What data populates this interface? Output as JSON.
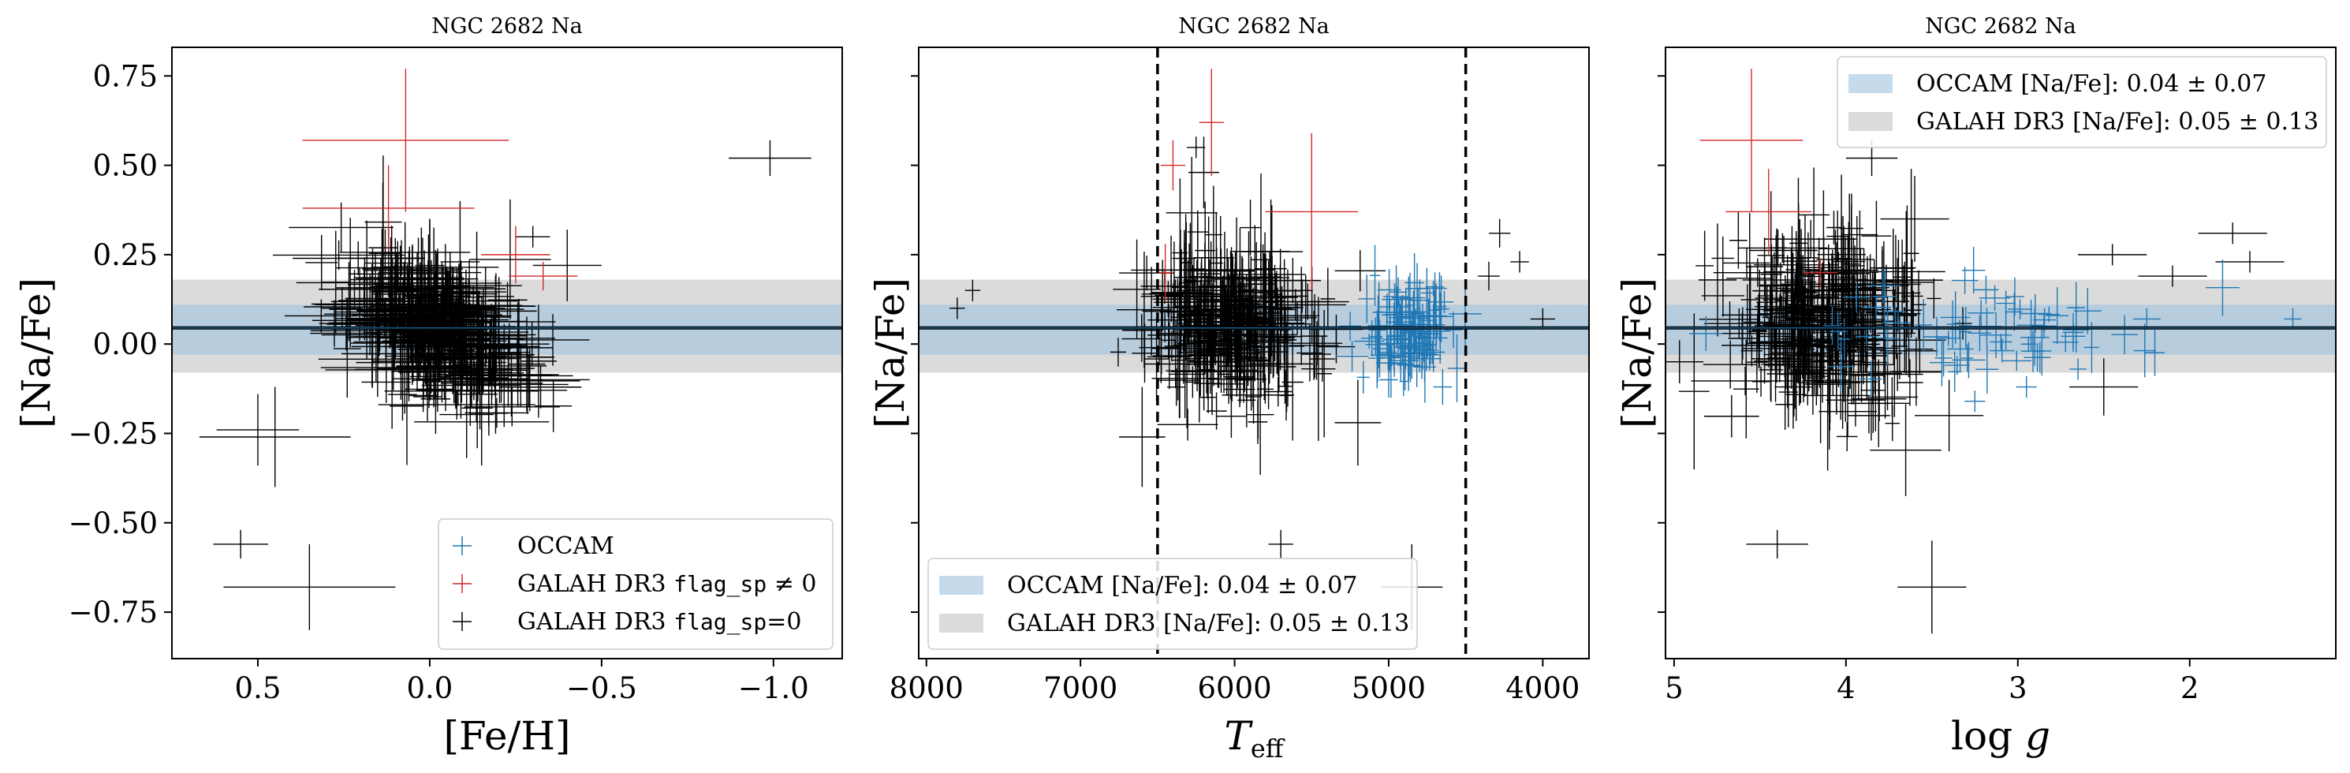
{
  "figure": {
    "colors": {
      "occam": "#1f77b4",
      "galah_flag": "#d62728",
      "galah": "#000000",
      "occam_band": "#9fc1de",
      "galah_band": "#cfcfcf"
    }
  },
  "chart_data": [
    {
      "type": "scatter",
      "title": "NGC 2682 Na",
      "xlabel": "[Fe/H]",
      "ylabel": "[Na/Fe]",
      "xlim": [
        0.75,
        -1.2
      ],
      "ylim": [
        -0.88,
        0.83
      ],
      "x_inverted": true,
      "xticks": [
        0.5,
        0.0,
        -0.5,
        -1.0
      ],
      "xtick_labels": [
        "0.5",
        "0.0",
        "−0.5",
        "−1.0"
      ],
      "yticks": [
        0.75,
        0.5,
        0.25,
        0.0,
        -0.25,
        -0.5,
        -0.75
      ],
      "ytick_labels": [
        "0.75",
        "0.50",
        "0.25",
        "0.00",
        "−0.25",
        "−0.50",
        "−0.75"
      ],
      "show_ytick_labels": true,
      "legend": {
        "placement": "lower-right",
        "entries": [
          {
            "series": "occam",
            "label": "OCCAM"
          },
          {
            "series": "galah_flag",
            "prefix": "GALAH DR3 ",
            "code": "flag_sp",
            "suffix": " ≠ 0"
          },
          {
            "series": "galah",
            "prefix": "GALAH DR3 ",
            "code": "flag_sp",
            "suffix": "=0"
          }
        ]
      },
      "bands": [
        {
          "name": "GALAH DR3",
          "center": 0.05,
          "halfwidth": 0.13
        },
        {
          "name": "OCCAM",
          "center": 0.04,
          "halfwidth": 0.07
        }
      ],
      "hline": 0.045,
      "vlines": [],
      "series": [
        {
          "name": "GALAH DR3 flag_sp ≠ 0",
          "color": "galah_flag",
          "points": [
            [
              0.07,
              0.57,
              0.3,
              0.2
            ],
            [
              0.12,
              0.38,
              0.25,
              0.12
            ],
            [
              -0.33,
              0.19,
              0.1,
              0.04
            ],
            [
              -0.25,
              0.25,
              0.1,
              0.08
            ]
          ]
        },
        {
          "name": "GALAH DR3 flag_sp=0",
          "color": "galah",
          "points": [
            [
              -0.99,
              0.52,
              0.12,
              0.05
            ],
            [
              0.35,
              -0.68,
              0.25,
              0.12
            ],
            [
              0.55,
              -0.56,
              0.08,
              0.04
            ],
            [
              0.45,
              -0.26,
              0.22,
              0.14
            ],
            [
              0.5,
              -0.24,
              0.12,
              0.1
            ],
            [
              -0.4,
              0.22,
              0.1,
              0.1
            ],
            [
              -0.3,
              0.3,
              0.05,
              0.03
            ],
            [
              0.0,
              0.2,
              0.15,
              0.15
            ],
            [
              0.05,
              0.1,
              0.05,
              0.1
            ]
          ]
        }
      ],
      "cluster": {
        "series": "galah",
        "n": 360,
        "cx": -0.02,
        "sx": 0.12,
        "cy": 0.05,
        "sy": 0.09,
        "slope": 0.35,
        "ex": [
          0.04,
          0.25
        ],
        "ey": [
          0.04,
          0.22
        ],
        "seed": 11
      }
    },
    {
      "type": "scatter",
      "title": "NGC 2682 Na",
      "xlabel": "T_eff",
      "ylabel": "[Na/Fe]",
      "xlim": [
        8050,
        3700
      ],
      "ylim": [
        -0.88,
        0.83
      ],
      "x_inverted": true,
      "xticks": [
        8000,
        7000,
        6000,
        5000,
        4000
      ],
      "xtick_labels": [
        "8000",
        "7000",
        "6000",
        "5000",
        "4000"
      ],
      "yticks": [
        0.75,
        0.5,
        0.25,
        0.0,
        -0.25,
        -0.5,
        -0.75
      ],
      "ytick_labels": [],
      "show_ytick_labels": false,
      "legend": {
        "placement": "lower-left",
        "entries": [
          {
            "series": "occam_band",
            "label": "OCCAM [Na/Fe]: 0.04 ± 0.07"
          },
          {
            "series": "galah_band",
            "label": "GALAH DR3 [Na/Fe]: 0.05 ± 0.13"
          }
        ]
      },
      "bands": [
        {
          "name": "GALAH DR3",
          "center": 0.05,
          "halfwidth": 0.13
        },
        {
          "name": "OCCAM",
          "center": 0.04,
          "halfwidth": 0.07
        }
      ],
      "hline": 0.045,
      "vlines": [
        6500,
        4500
      ],
      "series": [
        {
          "name": "GALAH DR3 flag_sp ≠ 0",
          "color": "galah_flag",
          "points": [
            [
              6150,
              0.62,
              80,
              0.15
            ],
            [
              5500,
              0.37,
              300,
              0.22
            ],
            [
              6450,
              0.2,
              50,
              0.08
            ],
            [
              6400,
              0.5,
              80,
              0.07
            ]
          ]
        },
        {
          "name": "GALAH DR3 flag_sp=0",
          "color": "galah",
          "points": [
            [
              7800,
              0.1,
              50,
              0.03
            ],
            [
              7700,
              0.15,
              50,
              0.03
            ],
            [
              4280,
              0.31,
              70,
              0.04
            ],
            [
              4350,
              0.19,
              70,
              0.04
            ],
            [
              4150,
              0.23,
              60,
              0.03
            ],
            [
              4000,
              0.07,
              80,
              0.03
            ],
            [
              6600,
              -0.26,
              150,
              0.14
            ],
            [
              5700,
              -0.56,
              80,
              0.04
            ],
            [
              4850,
              -0.68,
              200,
              0.12
            ],
            [
              5200,
              -0.22,
              150,
              0.12
            ],
            [
              6250,
              0.55,
              60,
              0.03
            ],
            [
              6200,
              0.48,
              100,
              0.1
            ]
          ]
        },
        {
          "name": "OCCAM",
          "color": "occam",
          "points": [
            [
              4580,
              0.04,
              60,
              0.05
            ],
            [
              4650,
              -0.12,
              60,
              0.05
            ],
            [
              5000,
              -0.1,
              60,
              0.05
            ],
            [
              4700,
              0.16,
              60,
              0.04
            ],
            [
              5250,
              0.05,
              70,
              0.04
            ]
          ]
        }
      ],
      "clusters": [
        {
          "series": "galah",
          "n": 340,
          "cx": 6000,
          "sx": 260,
          "cy": 0.05,
          "sy": 0.1,
          "slope": 0,
          "ex": [
            40,
            350
          ],
          "ey": [
            0.04,
            0.25
          ],
          "seed": 23
        },
        {
          "series": "occam",
          "n": 110,
          "cx": 4880,
          "sx": 130,
          "cy": 0.02,
          "sy": 0.07,
          "slope": 0,
          "ex": [
            25,
            110
          ],
          "ey": [
            0.02,
            0.1
          ],
          "seed": 31
        }
      ]
    },
    {
      "type": "scatter",
      "title": "NGC 2682 Na",
      "xlabel": "log g",
      "ylabel": "[Na/Fe]",
      "xlim": [
        5.05,
        1.15
      ],
      "ylim": [
        -0.88,
        0.83
      ],
      "x_inverted": true,
      "xticks": [
        5,
        4,
        3,
        2
      ],
      "xtick_labels": [
        "5",
        "4",
        "3",
        "2"
      ],
      "yticks": [
        0.75,
        0.5,
        0.25,
        0.0,
        -0.25,
        -0.5,
        -0.75
      ],
      "ytick_labels": [],
      "show_ytick_labels": false,
      "legend": {
        "placement": "upper-right",
        "entries": [
          {
            "series": "occam_band",
            "label": "OCCAM [Na/Fe]: 0.04 ± 0.07"
          },
          {
            "series": "galah_band",
            "label": "GALAH DR3 [Na/Fe]: 0.05 ± 0.13"
          }
        ]
      },
      "bands": [
        {
          "name": "GALAH DR3",
          "center": 0.05,
          "halfwidth": 0.13
        },
        {
          "name": "OCCAM",
          "center": 0.04,
          "halfwidth": 0.07
        }
      ],
      "hline": 0.045,
      "vlines": [],
      "series": [
        {
          "name": "GALAH DR3 flag_sp ≠ 0",
          "color": "galah_flag",
          "points": [
            [
              4.55,
              0.57,
              0.3,
              0.2
            ],
            [
              4.45,
              0.37,
              0.25,
              0.12
            ],
            [
              4.15,
              0.2,
              0.1,
              0.04
            ]
          ]
        },
        {
          "name": "GALAH DR3 flag_sp=0",
          "color": "galah",
          "points": [
            [
              4.4,
              -0.56,
              0.18,
              0.04
            ],
            [
              3.5,
              -0.68,
              0.2,
              0.13
            ],
            [
              3.85,
              0.52,
              0.15,
              0.05
            ],
            [
              1.75,
              0.31,
              0.2,
              0.03
            ],
            [
              1.65,
              0.23,
              0.2,
              0.03
            ],
            [
              2.1,
              0.19,
              0.2,
              0.03
            ],
            [
              2.45,
              0.25,
              0.2,
              0.03
            ],
            [
              2.5,
              -0.12,
              0.2,
              0.08
            ],
            [
              3.4,
              -0.2,
              0.2,
              0.1
            ],
            [
              3.6,
              0.35,
              0.2,
              0.12
            ]
          ]
        },
        {
          "name": "OCCAM",
          "color": "occam",
          "points": [
            [
              1.4,
              0.07,
              0.05,
              0.03
            ],
            [
              2.25,
              0.07,
              0.08,
              0.03
            ],
            [
              2.65,
              -0.07,
              0.05,
              0.03
            ],
            [
              2.95,
              -0.12,
              0.06,
              0.03
            ],
            [
              3.25,
              -0.16,
              0.06,
              0.03
            ]
          ]
        }
      ],
      "clusters": [
        {
          "series": "galah",
          "n": 330,
          "cx": 4.1,
          "sx": 0.28,
          "cy": 0.05,
          "sy": 0.11,
          "slope": 0,
          "ex": [
            0.04,
            0.35
          ],
          "ey": [
            0.04,
            0.25
          ],
          "seed": 47
        },
        {
          "series": "occam",
          "n": 70,
          "cx": 3.1,
          "sx": 0.45,
          "cy": 0.03,
          "sy": 0.06,
          "slope": 0,
          "ex": [
            0.03,
            0.1
          ],
          "ey": [
            0.02,
            0.08
          ],
          "seed": 59
        }
      ]
    }
  ]
}
